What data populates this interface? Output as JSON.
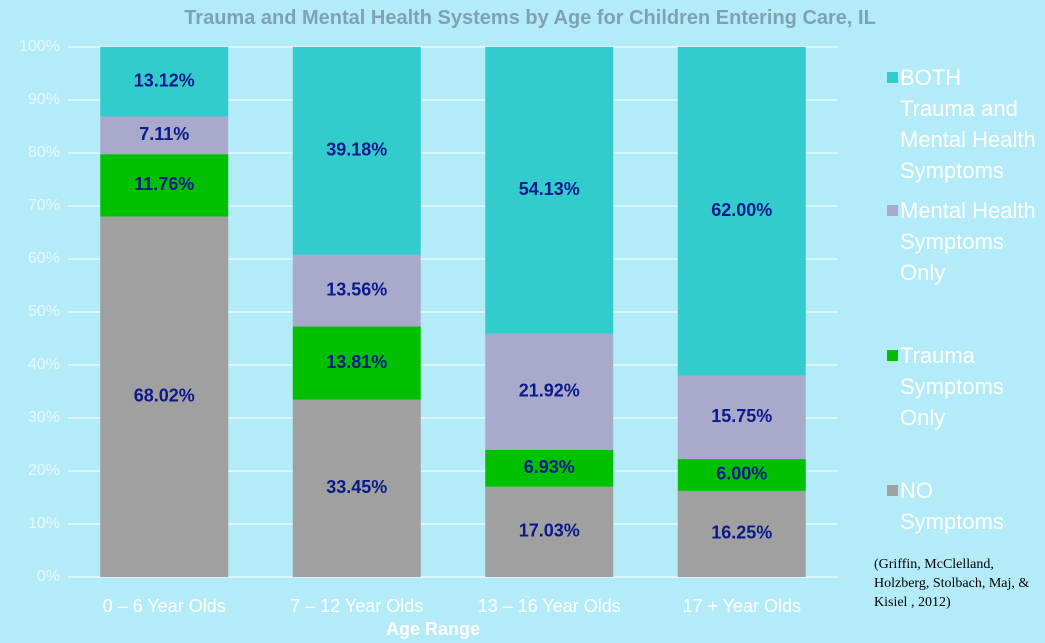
{
  "chart_data": {
    "type": "stacked_bar",
    "title": "Trauma and Mental Health Systems by Age for Children Entering Care, IL",
    "x_label": "Age Range",
    "categories": [
      "0 – 6 Year Olds",
      "7 – 12 Year Olds",
      "13 – 16 Year Olds",
      "17 + Year Olds"
    ],
    "series": [
      {
        "name": "NO Symptoms",
        "color": "#a0a0a0",
        "values": [
          68.02,
          33.45,
          17.03,
          16.25
        ],
        "value_labels": [
          "68.02%",
          "33.45%",
          "17.03%",
          "16.25%"
        ]
      },
      {
        "name": "Trauma Symptoms Only",
        "color": "#00c000",
        "values": [
          11.76,
          13.81,
          6.93,
          6.0
        ],
        "value_labels": [
          "11.76%",
          "13.81%",
          "6.93%",
          "6.00%"
        ]
      },
      {
        "name": "Mental Health Symptoms Only",
        "color": "#a9a9cc",
        "values": [
          7.11,
          13.56,
          21.92,
          15.75
        ],
        "value_labels": [
          "7.11%",
          "13.56%",
          "21.92%",
          "15.75%"
        ]
      },
      {
        "name": "BOTH Trauma and Mental Health Symptoms",
        "color": "#33cccc",
        "values": [
          13.12,
          39.18,
          54.13,
          62.0
        ],
        "value_labels": [
          "13.12%",
          "39.18%",
          "54.13%",
          "62.00%"
        ]
      }
    ],
    "ylim": [
      0,
      100
    ],
    "yticks": [
      {
        "value": 0,
        "label": "0%"
      },
      {
        "value": 10,
        "label": "10%"
      },
      {
        "value": 20,
        "label": "20%"
      },
      {
        "value": 30,
        "label": "30%"
      },
      {
        "value": 40,
        "label": "40%"
      },
      {
        "value": 50,
        "label": "50%"
      },
      {
        "value": 60,
        "label": "60%"
      },
      {
        "value": 70,
        "label": "70%"
      },
      {
        "value": 80,
        "label": "80%"
      },
      {
        "value": 90,
        "label": "90%"
      },
      {
        "value": 100,
        "label": "100%"
      }
    ],
    "grid": true,
    "legend": "right",
    "annotation": "(Griffin, McClelland, Holzberg, Stolbach, Maj, & Kisiel , 2012)"
  }
}
